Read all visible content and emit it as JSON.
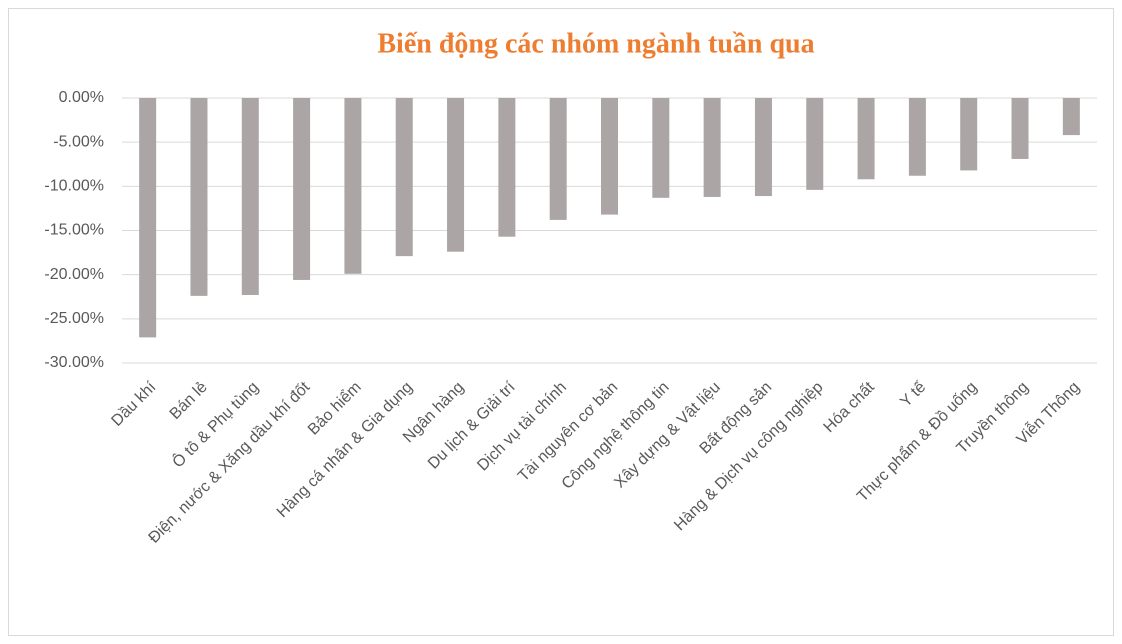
{
  "chart_data": {
    "type": "bar",
    "title": "Biến động các nhóm ngành tuần qua",
    "categories": [
      "Dầu khí",
      "Bán lẻ",
      "Ô tô & Phụ tùng",
      "Điện, nước & Xăng dầu khí đốt",
      "Bảo hiểm",
      "Hàng cá nhân & Gia dụng",
      "Ngân hàng",
      "Du lịch & Giải trí",
      "Dịch vụ tài chính",
      "Tài nguyên cơ bản",
      "Công nghệ thông tin",
      "Xây dựng & Vật liệu",
      "Bất động sản",
      "Hàng & Dịch vụ công nghiệp",
      "Hóa chất",
      "Y tế",
      "Thực phẩm & Đồ uống",
      "Truyền thông",
      "Viễn Thông"
    ],
    "values": [
      -27.1,
      -22.4,
      -22.3,
      -20.6,
      -19.9,
      -17.9,
      -17.4,
      -15.7,
      -13.8,
      -13.2,
      -11.3,
      -11.2,
      -11.1,
      -10.4,
      -9.2,
      -8.8,
      -8.2,
      -6.9,
      -4.2
    ],
    "color": "#aba5a5",
    "ylim": [
      -30,
      0
    ],
    "yticks": [
      {
        "value": 0,
        "label": "0.00%"
      },
      {
        "value": -5,
        "label": "-5.00%"
      },
      {
        "value": -10,
        "label": "-10.00%"
      },
      {
        "value": -15,
        "label": "-15.00%"
      },
      {
        "value": -20,
        "label": "-20.00%"
      },
      {
        "value": -25,
        "label": "-25.00%"
      },
      {
        "value": -30,
        "label": "-30.00%"
      }
    ],
    "grid": true
  }
}
